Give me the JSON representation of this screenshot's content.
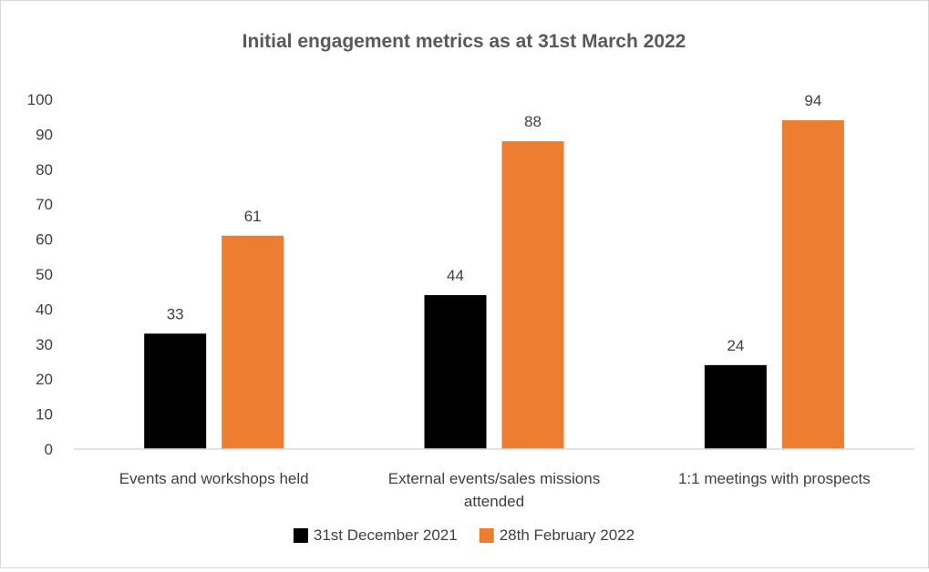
{
  "chart_data": {
    "type": "bar",
    "title": "Initial engagement metrics as at 31st March 2022",
    "xlabel": "",
    "ylabel": "",
    "ylim": [
      0,
      100
    ],
    "yticks": [
      0,
      10,
      20,
      30,
      40,
      50,
      60,
      70,
      80,
      90,
      100
    ],
    "categories": [
      [
        "Events and workshops held"
      ],
      [
        "External events/sales missions",
        "attended"
      ],
      [
        "1:1 meetings with prospects"
      ]
    ],
    "series": [
      {
        "name": "31st December 2021",
        "color": "#000000",
        "values": [
          33,
          44,
          24
        ]
      },
      {
        "name": "28th February 2022",
        "color": "#ed7d31",
        "values": [
          61,
          88,
          94
        ]
      }
    ],
    "grid": false,
    "legend_position": "bottom",
    "data_labels": true
  }
}
